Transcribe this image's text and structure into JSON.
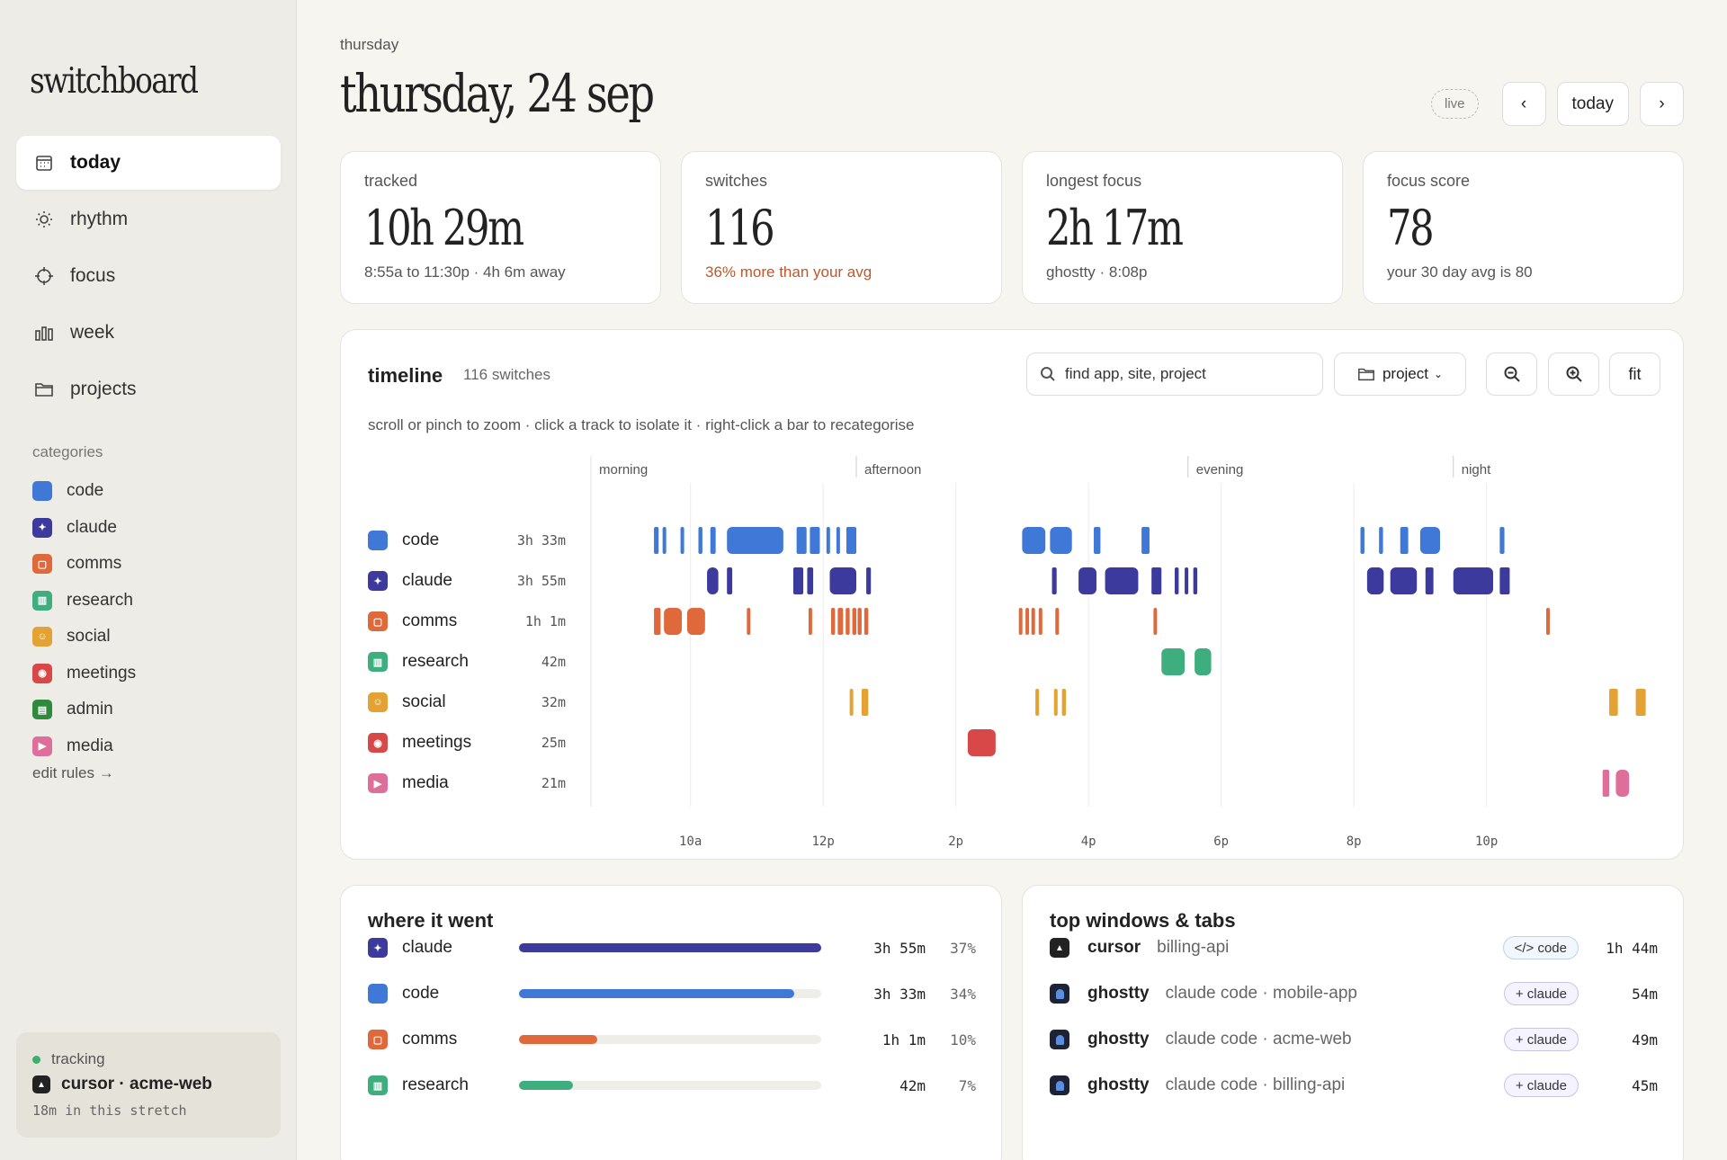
{
  "brand": "switchboard",
  "nav": [
    {
      "label": "today",
      "icon": "calendar-icon",
      "active": true
    },
    {
      "label": "rhythm",
      "icon": "sun-icon"
    },
    {
      "label": "focus",
      "icon": "crosshair-icon"
    },
    {
      "label": "week",
      "icon": "bars-icon"
    },
    {
      "label": "projects",
      "icon": "folder-icon"
    }
  ],
  "categories": {
    "heading": "categories",
    "edit": "edit rules →",
    "items": [
      {
        "name": "code",
        "color": "#3f78d6"
      },
      {
        "name": "claude",
        "color": "#3d3a9e"
      },
      {
        "name": "comms",
        "color": "#e0693b"
      },
      {
        "name": "research",
        "color": "#3fae7f"
      },
      {
        "name": "social",
        "color": "#e3a233"
      },
      {
        "name": "meetings",
        "color": "#d84848"
      },
      {
        "name": "admin",
        "color": "#2f8a3e"
      },
      {
        "name": "media",
        "color": "#de6e9a"
      }
    ]
  },
  "tracking": {
    "status": "tracking",
    "app": "cursor · acme-web",
    "stretch": "18m in this stretch"
  },
  "header": {
    "weekday": "thursday",
    "date": "thursday, 24 sep",
    "live": "live",
    "prev": "‹",
    "today": "today",
    "next": "›"
  },
  "stats": [
    {
      "label": "tracked",
      "value": "10h 29m",
      "sub": "8:55a to 11:30p · 4h 6m away"
    },
    {
      "label": "switches",
      "value": "116",
      "sub": "36% more than your avg"
    },
    {
      "label": "longest focus",
      "value": "2h 17m",
      "sub": "ghostty · 8:08p"
    },
    {
      "label": "focus score",
      "value": "78",
      "sub": "your 30 day avg is 80"
    }
  ],
  "timeline": {
    "title": "timeline",
    "count": "116 switches",
    "search_placeholder": "find app, site, project",
    "group": "project",
    "fit": "fit",
    "hint": "scroll or pinch to zoom · click a track to isolate it · right-click a bar to recategorise"
  },
  "chart_data": {
    "type": "timeline",
    "x_range": [
      8.5,
      24.5
    ],
    "periods": [
      {
        "label": "morning",
        "start": 8.5
      },
      {
        "label": "afternoon",
        "start": 12.5
      },
      {
        "label": "evening",
        "start": 17.5
      },
      {
        "label": "night",
        "start": 21.5
      }
    ],
    "ticks": [
      {
        "label": "10a",
        "t": 10
      },
      {
        "label": "12p",
        "t": 12
      },
      {
        "label": "2p",
        "t": 14
      },
      {
        "label": "4p",
        "t": 16
      },
      {
        "label": "6p",
        "t": 18
      },
      {
        "label": "8p",
        "t": 20
      },
      {
        "label": "10p",
        "t": 22
      }
    ],
    "tracks": [
      {
        "name": "code",
        "dur": "3h 33m",
        "color": "#3f78d6",
        "segs": [
          [
            9.45,
            9.52
          ],
          [
            9.58,
            9.63
          ],
          [
            9.85,
            9.9
          ],
          [
            10.12,
            10.18
          ],
          [
            10.3,
            10.38
          ],
          [
            10.55,
            11.4
          ],
          [
            11.6,
            11.75
          ],
          [
            11.8,
            11.95
          ],
          [
            12.05,
            12.1
          ],
          [
            12.2,
            12.25
          ],
          [
            12.35,
            12.5
          ],
          [
            15.0,
            15.35
          ],
          [
            15.42,
            15.75
          ],
          [
            16.08,
            16.18
          ],
          [
            16.8,
            16.92
          ],
          [
            20.1,
            20.16
          ],
          [
            20.38,
            20.44
          ],
          [
            20.7,
            20.82
          ],
          [
            21.0,
            21.3
          ],
          [
            22.2,
            22.27
          ]
        ]
      },
      {
        "name": "claude",
        "dur": "3h 55m",
        "color": "#3d3a9e",
        "segs": [
          [
            10.25,
            10.42
          ],
          [
            10.55,
            10.63
          ],
          [
            11.55,
            11.7
          ],
          [
            11.76,
            11.85
          ],
          [
            12.1,
            12.5
          ],
          [
            12.65,
            12.72
          ],
          [
            15.45,
            15.52
          ],
          [
            15.85,
            16.12
          ],
          [
            16.25,
            16.75
          ],
          [
            16.95,
            17.1
          ],
          [
            17.3,
            17.36
          ],
          [
            17.45,
            17.5
          ],
          [
            17.58,
            17.64
          ],
          [
            20.2,
            20.45
          ],
          [
            20.55,
            20.95
          ],
          [
            21.08,
            21.2
          ],
          [
            21.5,
            22.1
          ],
          [
            22.2,
            22.35
          ]
        ]
      },
      {
        "name": "comms",
        "dur": "1h 1m",
        "color": "#e0693b",
        "segs": [
          [
            9.45,
            9.55
          ],
          [
            9.6,
            9.87
          ],
          [
            9.95,
            10.22
          ],
          [
            10.85,
            10.9
          ],
          [
            11.78,
            11.82
          ],
          [
            12.12,
            12.18
          ],
          [
            12.22,
            12.3
          ],
          [
            12.34,
            12.4
          ],
          [
            12.44,
            12.5
          ],
          [
            12.52,
            12.58
          ],
          [
            12.62,
            12.68
          ],
          [
            14.95,
            15.0
          ],
          [
            15.05,
            15.1
          ],
          [
            15.14,
            15.18
          ],
          [
            15.25,
            15.3
          ],
          [
            15.5,
            15.55
          ],
          [
            16.98,
            17.03
          ],
          [
            22.9,
            22.95
          ]
        ]
      },
      {
        "name": "research",
        "dur": "42m",
        "color": "#3fae7f",
        "segs": [
          [
            17.1,
            17.45
          ],
          [
            17.6,
            17.85
          ]
        ]
      },
      {
        "name": "social",
        "dur": "32m",
        "color": "#e3a233",
        "segs": [
          [
            12.4,
            12.45
          ],
          [
            12.58,
            12.68
          ],
          [
            15.2,
            15.25
          ],
          [
            15.48,
            15.52
          ],
          [
            15.6,
            15.66
          ],
          [
            23.85,
            23.98
          ],
          [
            24.25,
            24.4
          ]
        ]
      },
      {
        "name": "meetings",
        "dur": "25m",
        "color": "#d84848",
        "segs": [
          [
            14.18,
            14.6
          ]
        ]
      },
      {
        "name": "media",
        "dur": "21m",
        "color": "#de6e9a",
        "segs": [
          [
            23.75,
            23.85
          ],
          [
            23.95,
            24.15
          ]
        ]
      }
    ]
  },
  "where": {
    "title": "where it went",
    "rows": [
      {
        "name": "claude",
        "color": "#3d3a9e",
        "frac": 1.0,
        "time": "3h 55m",
        "pct": "37%"
      },
      {
        "name": "code",
        "color": "#3f78d6",
        "frac": 0.91,
        "time": "3h 33m",
        "pct": "34%"
      },
      {
        "name": "comms",
        "color": "#e0693b",
        "frac": 0.26,
        "time": "1h 1m",
        "pct": "10%"
      },
      {
        "name": "research",
        "color": "#3fae7f",
        "frac": 0.18,
        "time": "42m",
        "pct": "7%"
      }
    ]
  },
  "top": {
    "title": "top windows & tabs",
    "rows": [
      {
        "app": "cursor",
        "title": "billing-api",
        "chip": "</> code",
        "time": "1h 44m",
        "icon": "cursor-app-icon"
      },
      {
        "app": "ghostty",
        "title": "claude code · mobile-app",
        "chip": "+ claude",
        "time": "54m",
        "icon": "ghostty-app-icon"
      },
      {
        "app": "ghostty",
        "title": "claude code · acme-web",
        "chip": "+ claude",
        "time": "49m",
        "icon": "ghostty-app-icon"
      },
      {
        "app": "ghostty",
        "title": "claude code · billing-api",
        "chip": "+ claude",
        "time": "45m",
        "icon": "ghostty-app-icon"
      }
    ]
  }
}
